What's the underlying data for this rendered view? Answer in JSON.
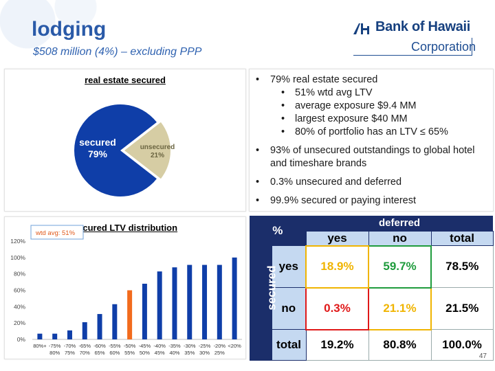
{
  "header": {
    "title": "lodging",
    "subtitle": "$508 million (4%) – excluding PPP"
  },
  "logo": {
    "name": "Bank of Hawaii",
    "corporation": "Corporation"
  },
  "pie": {
    "title": "real estate secured",
    "secured_label": "secured",
    "secured_pct": "79%",
    "unsecured_label": "unsecured",
    "unsecured_pct": "21%",
    "colors": {
      "secured": "#0f3ea8",
      "unsecured": "#d6cda4"
    }
  },
  "bullets": [
    {
      "level": 1,
      "text": "79% real estate secured"
    },
    {
      "level": 2,
      "text": "51% wtd avg LTV"
    },
    {
      "level": 2,
      "text": "average exposure $9.4 MM"
    },
    {
      "level": 2,
      "text": "largest exposure $40 MM"
    },
    {
      "level": 2,
      "text": "80% of portfolio has an LTV ≤ 65%"
    },
    {
      "level": 1,
      "text": "93% of unsecured outstandings to global hotel and timeshare brands"
    },
    {
      "level": 1,
      "text": "0.3% unsecured and deferred"
    },
    {
      "level": 1,
      "text": "99.9% secured or paying interest"
    }
  ],
  "chart_data": [
    {
      "type": "pie",
      "title": "real estate secured",
      "labels": [
        "secured",
        "unsecured"
      ],
      "values": [
        79,
        21
      ]
    },
    {
      "type": "bar",
      "title": "secured LTV distribution",
      "annotation": "wtd avg:  51%",
      "categories": [
        "80%+",
        "75%-80%",
        "70%-75%",
        "65%-70%",
        "60%-65%",
        "55%-60%",
        "50%-55%",
        "45%-50%",
        "40%-45%",
        "35%-40%",
        "30%-35%",
        "25%-30%",
        "20%-25%",
        "<20%"
      ],
      "cat_line1": [
        "80%+",
        "-75%",
        "-70%",
        "-65%",
        "-60%",
        "-55%",
        "-50%",
        "-45%",
        "-40%",
        "-35%",
        "-30%",
        "-25%",
        "-20%",
        "<20%"
      ],
      "cat_line2": [
        "",
        "80%",
        "75%",
        "70%",
        "65%",
        "60%",
        "55%",
        "50%",
        "45%",
        "40%",
        "35%",
        "30%",
        "25%",
        ""
      ],
      "values": [
        7,
        7,
        11,
        21,
        31,
        43,
        60,
        68,
        83,
        88,
        91,
        91,
        91,
        100
      ],
      "highlight_index": 6,
      "yticks": [
        "0%",
        "20%",
        "40%",
        "60%",
        "80%",
        "100%",
        "120%"
      ],
      "ylim": [
        0,
        120
      ],
      "colors": {
        "bar": "#0f3ea8",
        "highlight": "#f26b1d"
      }
    }
  ],
  "matrix": {
    "corner": "%",
    "deferred": "deferred",
    "secured": "secured",
    "cols": [
      "yes",
      "no",
      "total"
    ],
    "rows": [
      {
        "label": "yes",
        "values": [
          "18.9%",
          "59.7%",
          "78.5%"
        ]
      },
      {
        "label": "no",
        "values": [
          "0.3%",
          "21.1%",
          "21.5%"
        ]
      },
      {
        "label": "total",
        "values": [
          "19.2%",
          "80.8%",
          "100.0%"
        ]
      }
    ]
  },
  "page_number": "47"
}
